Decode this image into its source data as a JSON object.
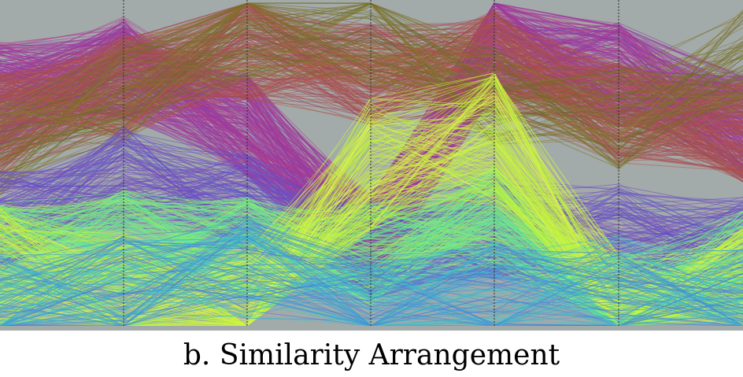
{
  "caption": "b. Similarity Arrangement",
  "chart_data": {
    "type": "parallel-coordinates",
    "title": "",
    "axes_count": 7,
    "background_color": "#a3aaaa",
    "axis_line_color": "#2b2b2b",
    "grid": false,
    "legend": "none",
    "normalized_range": [
      0,
      1
    ],
    "clusters": [
      {
        "color_family": [
          "#8a3aa8",
          "#a23a9e",
          "#b03a8a"
        ],
        "lines": 260,
        "profile": [
          0.72,
          0.8,
          0.62,
          0.25,
          0.88,
          0.78,
          0.62
        ]
      },
      {
        "color_family": [
          "#a84c52",
          "#b55544",
          "#9c4b5a"
        ],
        "lines": 200,
        "profile": [
          0.62,
          0.74,
          0.86,
          0.78,
          0.82,
          0.66,
          0.6
        ]
      },
      {
        "color_family": [
          "#76702a",
          "#8a7a2e",
          "#6a6c26"
        ],
        "lines": 80,
        "profile": [
          0.55,
          0.72,
          0.92,
          0.9,
          0.7,
          0.64,
          0.82
        ]
      },
      {
        "color_family": [
          "#6f52c8",
          "#5a4ec8",
          "#7a4ab8"
        ],
        "lines": 140,
        "profile": [
          0.32,
          0.46,
          0.38,
          0.24,
          0.3,
          0.28,
          0.24
        ]
      },
      {
        "color_family": [
          "#6cf082",
          "#5ae8a0",
          "#9ef060"
        ],
        "lines": 180,
        "profile": [
          0.22,
          0.26,
          0.24,
          0.22,
          0.34,
          0.06,
          0.2
        ]
      },
      {
        "color_family": [
          "#c8f43c",
          "#b4f03a",
          "#e0f450"
        ],
        "lines": 160,
        "profile": [
          0.16,
          0.08,
          0.03,
          0.5,
          0.58,
          0.02,
          0.1
        ]
      },
      {
        "color_family": [
          "#3ea0d8",
          "#4a7ad8",
          "#3cc8c8"
        ],
        "lines": 120,
        "profile": [
          0.06,
          0.12,
          0.18,
          0.06,
          0.1,
          0.12,
          0.08
        ]
      }
    ]
  }
}
